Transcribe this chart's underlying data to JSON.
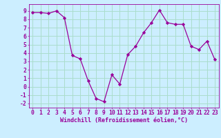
{
  "x": [
    0,
    1,
    2,
    3,
    4,
    5,
    6,
    7,
    8,
    9,
    10,
    11,
    12,
    13,
    14,
    15,
    16,
    17,
    18,
    19,
    20,
    21,
    22,
    23
  ],
  "y": [
    8.8,
    8.8,
    8.7,
    9.0,
    8.2,
    3.7,
    3.3,
    0.7,
    -1.4,
    -1.8,
    1.4,
    0.3,
    3.8,
    4.8,
    6.4,
    7.6,
    9.1,
    7.6,
    7.4,
    7.4,
    4.8,
    4.4,
    5.4,
    3.2
  ],
  "line_color": "#990099",
  "marker": "D",
  "marker_size": 2.2,
  "bg_color": "#cceeff",
  "grid_color": "#aaddcc",
  "xlabel": "Windchill (Refroidissement éolien,°C)",
  "xlabel_fontsize": 6.0,
  "tick_fontsize": 5.8,
  "ylim": [
    -2.5,
    9.8
  ],
  "xlim": [
    -0.5,
    23.5
  ],
  "yticks": [
    -2,
    -1,
    0,
    1,
    2,
    3,
    4,
    5,
    6,
    7,
    8,
    9
  ],
  "xticks": [
    0,
    1,
    2,
    3,
    4,
    5,
    6,
    7,
    8,
    9,
    10,
    11,
    12,
    13,
    14,
    15,
    16,
    17,
    18,
    19,
    20,
    21,
    22,
    23
  ]
}
